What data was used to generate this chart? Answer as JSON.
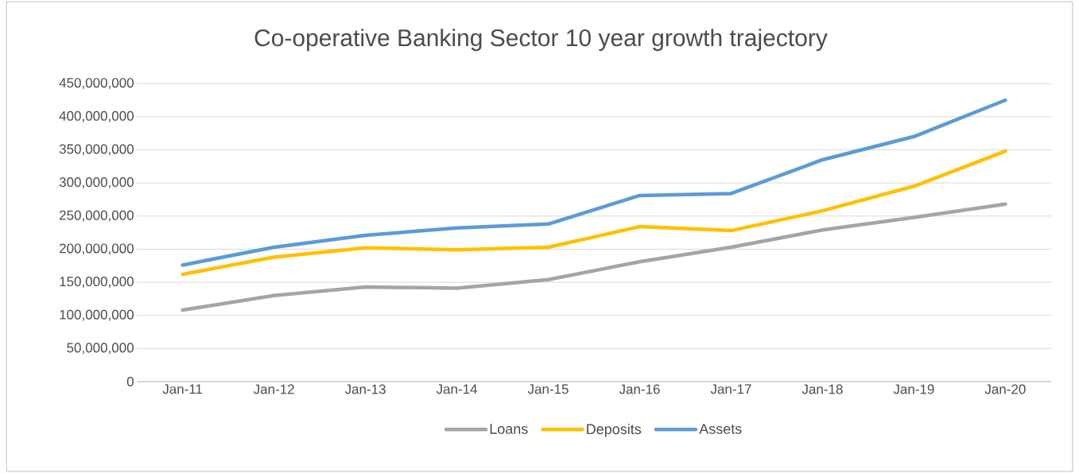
{
  "chart_data": {
    "type": "line",
    "title": "Co-operative Banking Sector 10 year growth trajectory",
    "categories": [
      "Jan-11",
      "Jan-12",
      "Jan-13",
      "Jan-14",
      "Jan-15",
      "Jan-16",
      "Jan-17",
      "Jan-18",
      "Jan-19",
      "Jan-20"
    ],
    "series": [
      {
        "name": "Loans",
        "color": "#a5a5a5",
        "values": [
          108000000,
          130000000,
          143000000,
          141000000,
          154000000,
          181000000,
          203000000,
          229000000,
          248000000,
          268000000
        ]
      },
      {
        "name": "Deposits",
        "color": "#ffc000",
        "values": [
          162000000,
          188000000,
          202000000,
          199000000,
          203000000,
          234000000,
          228000000,
          258000000,
          295000000,
          348000000
        ]
      },
      {
        "name": "Assets",
        "color": "#5b9bd5",
        "values": [
          176000000,
          203000000,
          221000000,
          232000000,
          238000000,
          281000000,
          284000000,
          335000000,
          370000000,
          425000000
        ]
      }
    ],
    "ylim": [
      0,
      450000000
    ],
    "yticks": [
      {
        "value": 0,
        "label": "0"
      },
      {
        "value": 50000000,
        "label": "50,000,000"
      },
      {
        "value": 100000000,
        "label": "100,000,000"
      },
      {
        "value": 150000000,
        "label": "150,000,000"
      },
      {
        "value": 200000000,
        "label": "200,000,000"
      },
      {
        "value": 250000000,
        "label": "250,000,000"
      },
      {
        "value": 300000000,
        "label": "300,000,000"
      },
      {
        "value": 350000000,
        "label": "350,000,000"
      },
      {
        "value": 400000000,
        "label": "400,000,000"
      },
      {
        "value": 450000000,
        "label": "450,000,000"
      }
    ],
    "grid": "y",
    "legend": "bottom",
    "marker": "none",
    "line_style": "solid"
  }
}
